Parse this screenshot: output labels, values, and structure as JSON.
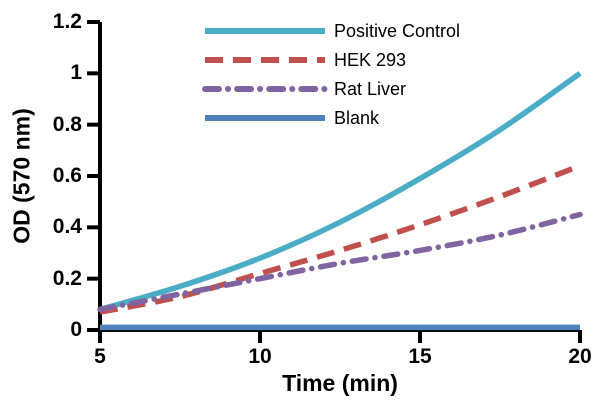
{
  "chart_data": {
    "type": "line",
    "title": "",
    "xlabel": "Time (min)",
    "ylabel": "OD (570 nm)",
    "xlim": [
      5,
      20
    ],
    "ylim": [
      0,
      1.2
    ],
    "grid": false,
    "legend_position": "top-left-inside",
    "x_ticks": [
      5,
      10,
      15,
      20
    ],
    "x_tick_labels": [
      "5",
      "10",
      "15",
      "20"
    ],
    "y_ticks": [
      0,
      0.2,
      0.4,
      0.6,
      0.8,
      1,
      1.2
    ],
    "y_tick_labels": [
      "0",
      "0.2",
      "0.4",
      "0.6",
      "0.8",
      "1",
      "1.2"
    ],
    "axis_color": "#000000",
    "series": [
      {
        "name": "Positive Control",
        "color": "#4BACC6",
        "style": "solid",
        "x": [
          5,
          7.5,
          10,
          12.5,
          15,
          17.5,
          20
        ],
        "y": [
          0.08,
          0.17,
          0.28,
          0.42,
          0.59,
          0.78,
          1.0
        ]
      },
      {
        "name": "HEK 293",
        "color": "#C0504D",
        "style": "dashed",
        "x": [
          5,
          7.5,
          10,
          12.5,
          15,
          17.5,
          20
        ],
        "y": [
          0.07,
          0.13,
          0.22,
          0.31,
          0.41,
          0.52,
          0.64
        ]
      },
      {
        "name": "Rat Liver",
        "color": "#8064A2",
        "style": "dashdot",
        "x": [
          5,
          7.5,
          10,
          12.5,
          15,
          17.5,
          20
        ],
        "y": [
          0.08,
          0.14,
          0.2,
          0.26,
          0.31,
          0.37,
          0.45
        ]
      },
      {
        "name": "Blank",
        "color": "#4F81BD",
        "style": "solid",
        "x": [
          5,
          10,
          15,
          20
        ],
        "y": [
          0.01,
          0.01,
          0.01,
          0.01
        ]
      }
    ]
  }
}
